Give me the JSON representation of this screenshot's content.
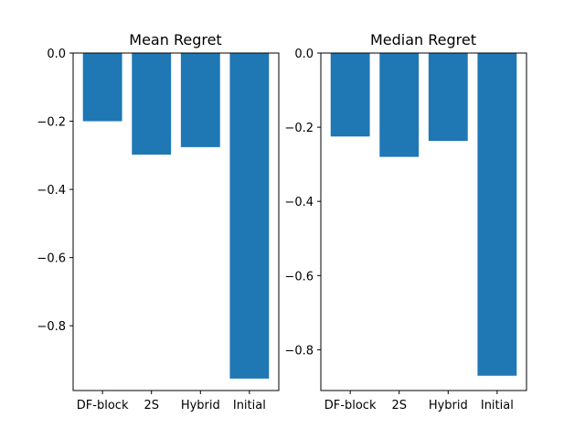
{
  "chart_data": [
    {
      "type": "bar",
      "title": "Mean Regret",
      "xlabel": "",
      "ylabel": "",
      "categories": [
        "DF-block",
        "2S",
        "Hybrid",
        "Initial"
      ],
      "values": [
        -0.2,
        -0.298,
        -0.276,
        -0.955
      ],
      "ylim": [
        -0.99,
        0.0
      ],
      "yticks": [
        0.0,
        -0.2,
        -0.4,
        -0.6,
        -0.8
      ],
      "ytick_labels": [
        "0.0",
        "−0.2",
        "−0.4",
        "−0.6",
        "−0.8"
      ],
      "bar_color": "#1f77b4",
      "grid": false,
      "legend": "none"
    },
    {
      "type": "bar",
      "title": "Median Regret",
      "xlabel": "",
      "ylabel": "",
      "categories": [
        "DF-block",
        "2S",
        "Hybrid",
        "Initial"
      ],
      "values": [
        -0.225,
        -0.28,
        -0.237,
        -0.87
      ],
      "ylim": [
        -0.91,
        0.0
      ],
      "yticks": [
        0.0,
        -0.2,
        -0.4,
        -0.6,
        -0.8
      ],
      "ytick_labels": [
        "0.0",
        "−0.2",
        "−0.4",
        "−0.6",
        "−0.8"
      ],
      "bar_color": "#1f77b4",
      "grid": false,
      "legend": "none"
    }
  ]
}
